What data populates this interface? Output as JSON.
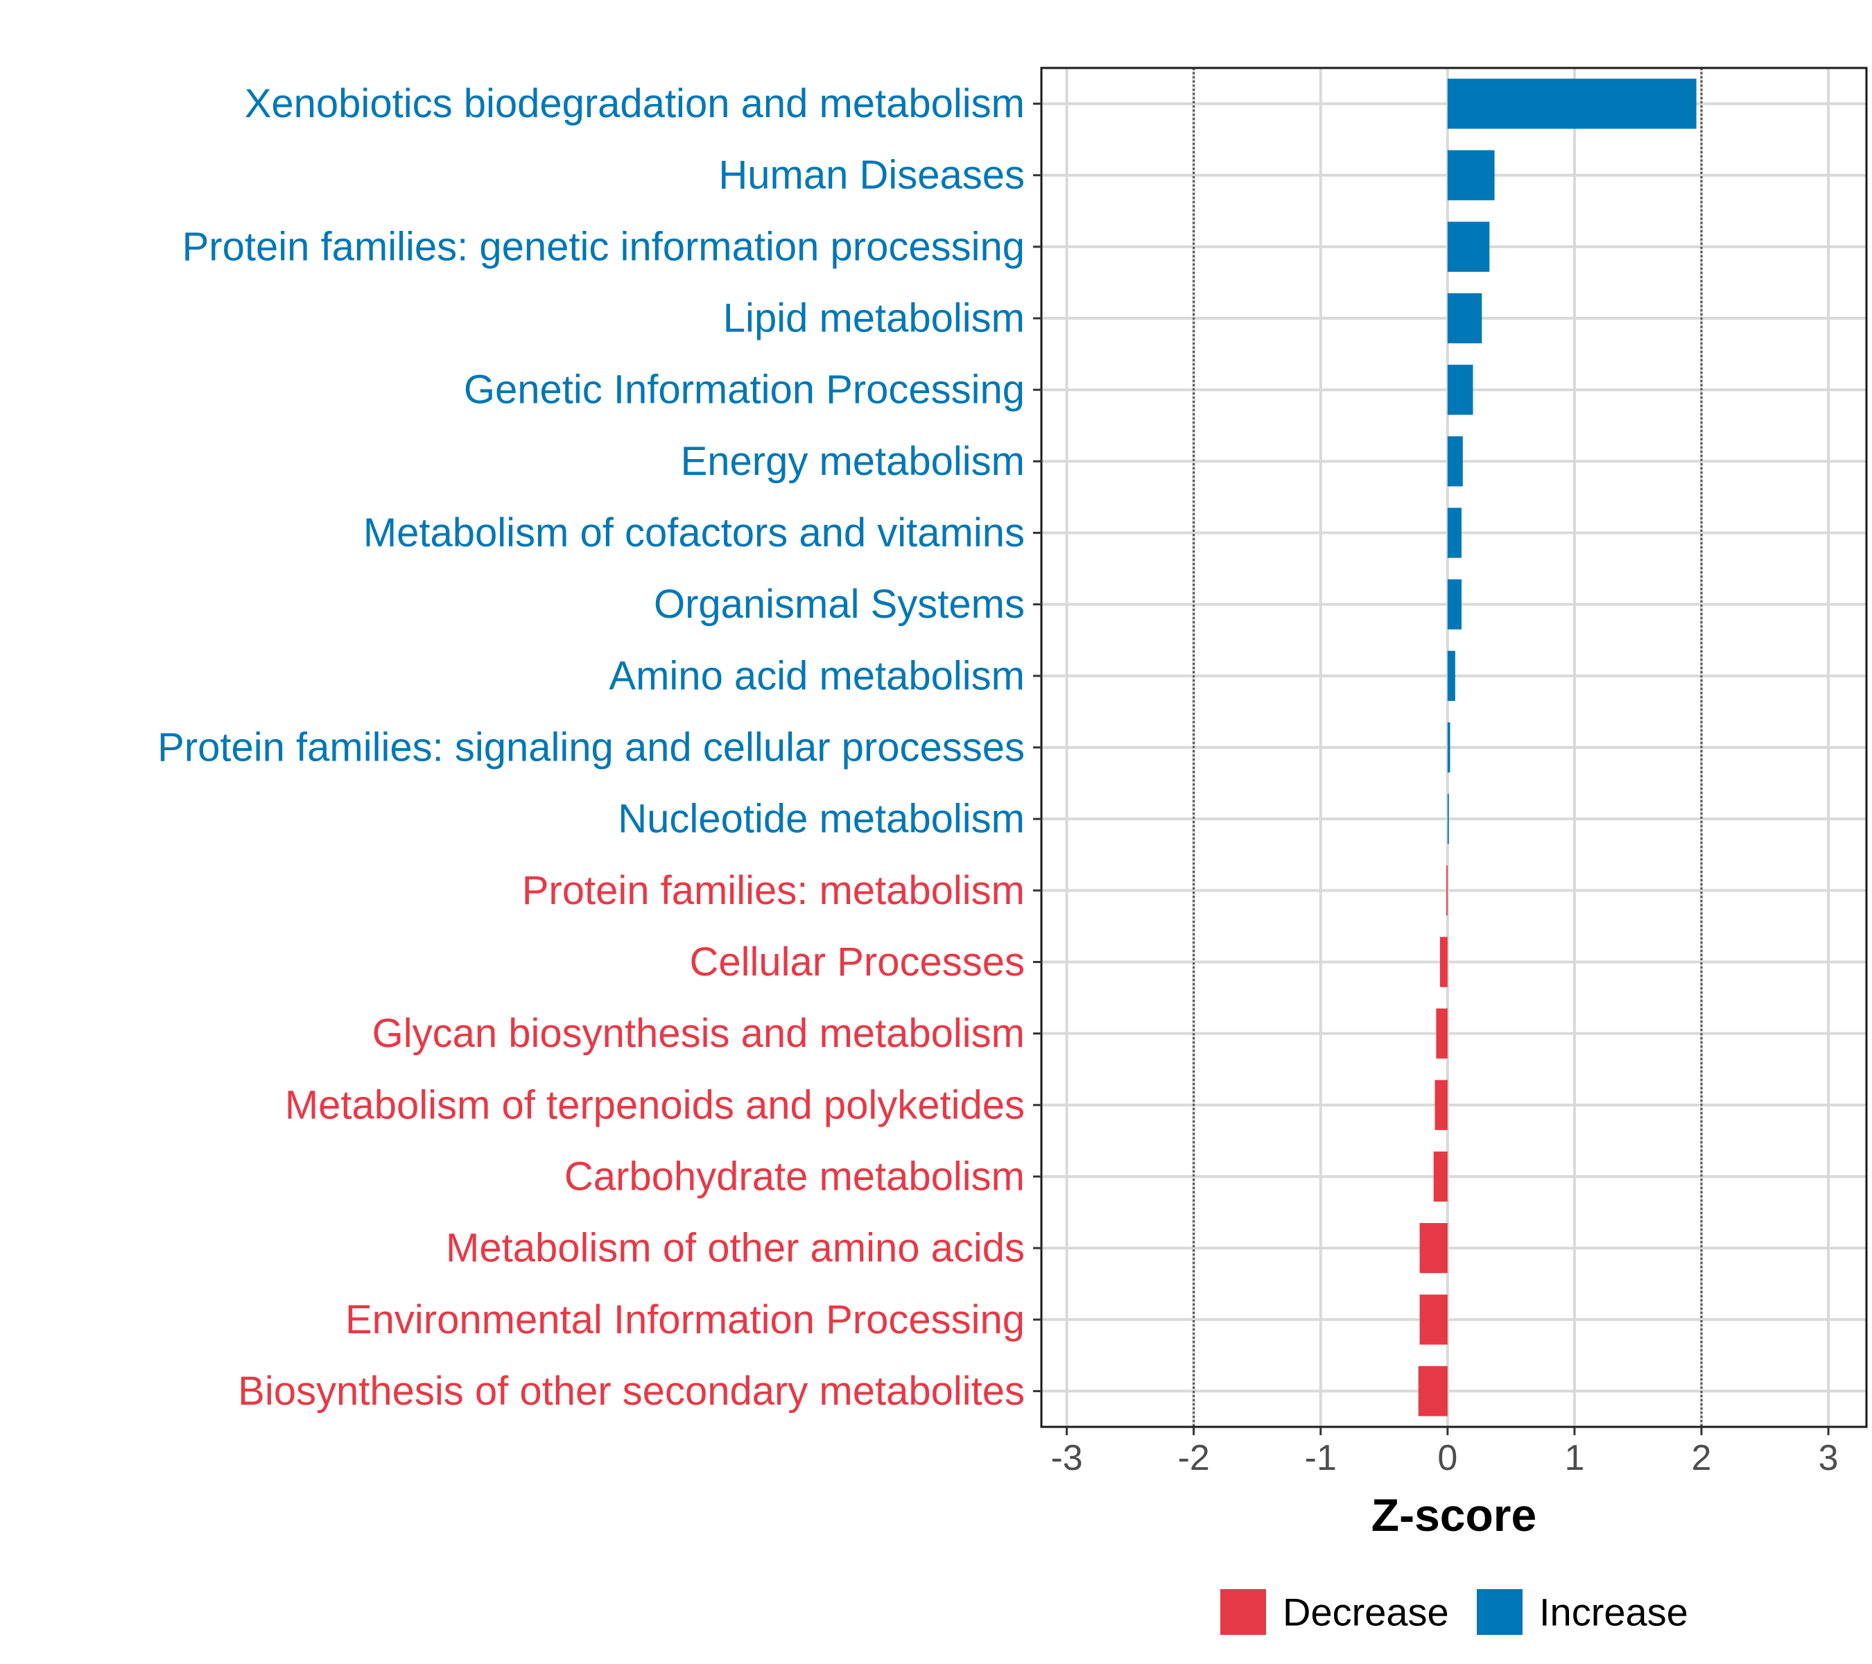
{
  "chart_data": {
    "type": "bar",
    "orientation": "horizontal",
    "xlabel": "Z-score",
    "ylabel": "",
    "xlim": [
      -3.2,
      3.3
    ],
    "xticks": [
      -3,
      -2,
      -1,
      0,
      1,
      2,
      3
    ],
    "tick_labels": [
      "-3",
      "-2",
      "-1",
      "0",
      "1",
      "2",
      "3"
    ],
    "reference_lines": [
      -2,
      2
    ],
    "grid": true,
    "colors": {
      "Decrease": "#e63946",
      "Increase": "#0077b6"
    },
    "categories": [
      "Xenobiotics biodegradation and metabolism",
      "Human Diseases",
      "Protein families: genetic information processing",
      "Lipid metabolism",
      "Genetic Information Processing",
      "Energy metabolism",
      "Metabolism of cofactors and vitamins",
      "Organismal Systems",
      "Amino acid metabolism",
      "Protein families: signaling and cellular processes",
      "Nucleotide metabolism",
      "Protein families: metabolism",
      "Cellular Processes",
      "Glycan biosynthesis and metabolism",
      "Metabolism of terpenoids and polyketides",
      "Carbohydrate metabolism",
      "Metabolism of other amino acids",
      "Environmental Information Processing",
      "Biosynthesis of other secondary metabolites"
    ],
    "values": [
      1.96,
      0.37,
      0.33,
      0.27,
      0.2,
      0.12,
      0.11,
      0.11,
      0.06,
      0.02,
      0.01,
      -0.01,
      -0.06,
      -0.09,
      -0.1,
      -0.11,
      -0.22,
      -0.22,
      -0.23
    ],
    "groups": [
      "Increase",
      "Increase",
      "Increase",
      "Increase",
      "Increase",
      "Increase",
      "Increase",
      "Increase",
      "Increase",
      "Increase",
      "Increase",
      "Decrease",
      "Decrease",
      "Decrease",
      "Decrease",
      "Decrease",
      "Decrease",
      "Decrease",
      "Decrease"
    ],
    "legend": {
      "position": "bottom",
      "items": [
        {
          "label": "Decrease",
          "color": "#e63946"
        },
        {
          "label": "Increase",
          "color": "#0077b6"
        }
      ]
    }
  }
}
